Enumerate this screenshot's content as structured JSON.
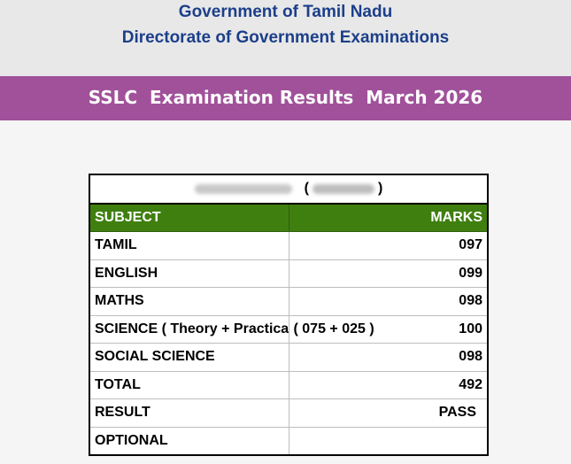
{
  "header": {
    "line1": "Government of Tamil Nadu",
    "line2": "Directorate of Government Examinations"
  },
  "banner": {
    "title": "SSLC  Examination Results  March 2026"
  },
  "student": {
    "open_paren": "(",
    "close_paren": ")"
  },
  "table": {
    "col_subject": "SUBJECT",
    "col_marks": "MARKS",
    "rows": [
      {
        "subject": "TAMIL",
        "marks": "097"
      },
      {
        "subject": "ENGLISH",
        "marks": "099"
      },
      {
        "subject": "MATHS",
        "marks": "098"
      },
      {
        "subject": "SCIENCE ( Theory + Practical )",
        "breakdown": "( 075 + 025 )",
        "marks": "100"
      },
      {
        "subject": "SOCIAL SCIENCE",
        "marks": "098"
      },
      {
        "subject": "TOTAL",
        "marks": "492"
      },
      {
        "subject": "RESULT",
        "marks": "PASS"
      },
      {
        "subject": "OPTIONAL",
        "marks": ""
      }
    ]
  },
  "colors": {
    "header_text": "#1c3f8a",
    "banner_bg": "#a0519a",
    "table_head_bg": "#3f7f10"
  }
}
